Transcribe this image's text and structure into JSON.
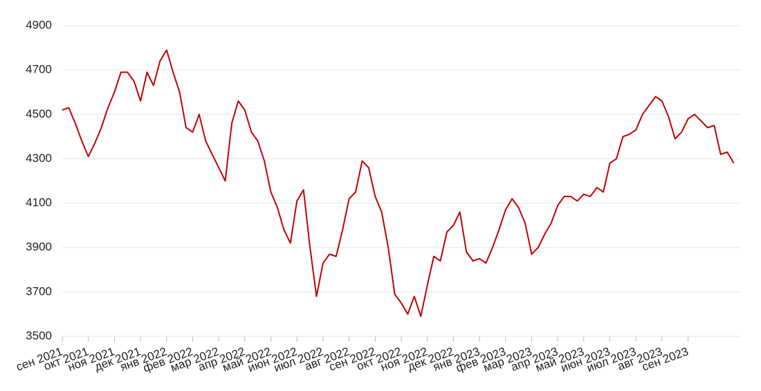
{
  "chart_data": {
    "type": "line",
    "categories": [
      "сен 2021",
      null,
      null,
      null,
      "окт 2021",
      null,
      null,
      null,
      "ноя 2021",
      null,
      null,
      null,
      "дек 2021",
      null,
      null,
      null,
      "янв 2022",
      null,
      null,
      null,
      "фев 2022",
      null,
      null,
      null,
      "мар 2022",
      null,
      null,
      null,
      "апр 2022",
      null,
      null,
      null,
      "май 2022",
      null,
      null,
      null,
      "июн 2022",
      null,
      null,
      null,
      "июл 2022",
      null,
      null,
      null,
      "авг 2022",
      null,
      null,
      null,
      "сен 2022",
      null,
      null,
      null,
      "окт 2022",
      null,
      null,
      null,
      "ноя 2022",
      null,
      null,
      null,
      "дек 2022",
      null,
      null,
      null,
      "янв 2023",
      null,
      null,
      null,
      "фев 2023",
      null,
      null,
      null,
      "мар 2023",
      null,
      null,
      null,
      "апр 2023",
      null,
      null,
      null,
      "май 2023",
      null,
      null,
      null,
      "июн 2023",
      null,
      null,
      null,
      "июл 2023",
      null,
      null,
      null,
      "авг 2023",
      null,
      null,
      null,
      "сен 2023",
      null,
      null,
      null,
      null,
      null,
      null,
      null
    ],
    "series": [
      {
        "color": "#c00000",
        "values": [
          4520,
          4530,
          4460,
          4380,
          4310,
          4370,
          4440,
          4530,
          4600,
          4690,
          4690,
          4650,
          4560,
          4690,
          4630,
          4740,
          4790,
          4690,
          4600,
          4440,
          4420,
          4500,
          4380,
          4320,
          4260,
          4200,
          4460,
          4560,
          4520,
          4420,
          4380,
          4290,
          4150,
          4080,
          3980,
          3920,
          4110,
          4160,
          3900,
          3680,
          3830,
          3870,
          3860,
          3980,
          4120,
          4150,
          4290,
          4260,
          4130,
          4060,
          3900,
          3690,
          3650,
          3600,
          3680,
          3590,
          3730,
          3860,
          3840,
          3970,
          4000,
          4060,
          3880,
          3840,
          3850,
          3830,
          3900,
          3980,
          4070,
          4120,
          4080,
          4010,
          3870,
          3900,
          3960,
          4010,
          4090,
          4130,
          4130,
          4110,
          4140,
          4130,
          4170,
          4150,
          4280,
          4300,
          4400,
          4410,
          4430,
          4500,
          4540,
          4580,
          4560,
          4490,
          4390,
          4420,
          4480,
          4500,
          4470,
          4440,
          4450,
          4320,
          4330,
          4280
        ]
      }
    ],
    "ylim": [
      3500,
      4900
    ],
    "yticks": [
      3500,
      3700,
      3900,
      4100,
      4300,
      4500,
      4700,
      4900
    ],
    "grid": true
  }
}
